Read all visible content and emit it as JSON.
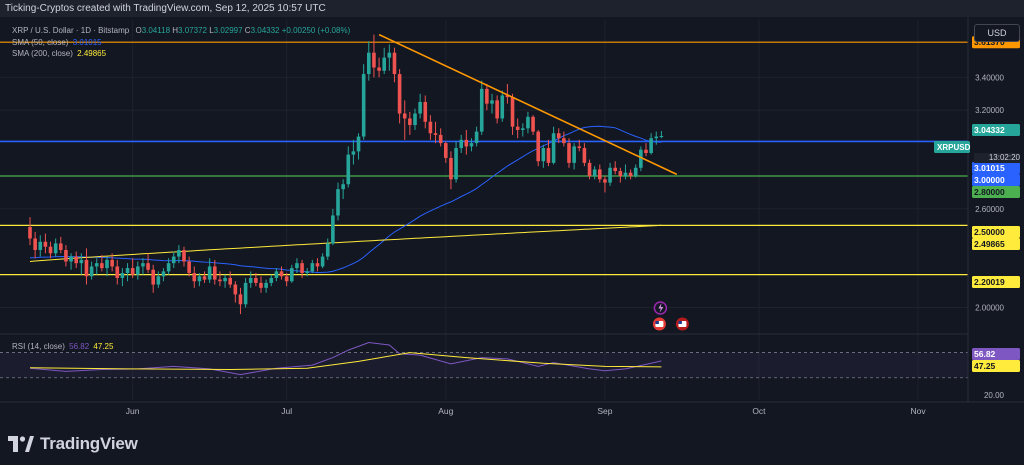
{
  "header": {
    "attribution": "Ticking-Cryptos created with TradingView.com, Sep 12, 2025 10:57 UTC"
  },
  "legend": {
    "symbol_line": "XRP / U.S. Dollar · 1D · Bitstamp",
    "ohlc": {
      "o_label": "O",
      "o": "3.04118",
      "h_label": "H",
      "h": "3.07372",
      "l_label": "L",
      "l": "3.02997",
      "c_label": "C",
      "c": "3.04332",
      "change": "+0.00250 (+0.08%)"
    },
    "sma50": {
      "label": "SMA (50, close)",
      "value": "3.01015",
      "color": "#2962ff"
    },
    "sma200": {
      "label": "SMA (200, close)",
      "value": "2.49865",
      "color": "#ffeb3b"
    }
  },
  "currency_button": "USD",
  "symbol_tag": "XRPUSD",
  "countdown": "13:02:20",
  "rsi": {
    "label": "RSI (14, close)",
    "value": "56.82",
    "ma_value": "47.25",
    "axis_label": "20.00",
    "upper_level": "70.00",
    "lower_level": "30.00",
    "color": "#7e57c2",
    "ma_color": "#ffeb3b"
  },
  "brand": {
    "name": "TradingView"
  },
  "colors": {
    "up": "#26a69a",
    "down": "#ef5350",
    "trendline": "#ff9800",
    "blue_line": "#2962ff",
    "green_line": "#4caf50",
    "yellow_line": "#ffeb3b",
    "sma50": "#2962ff",
    "sma200": "#ffeb3b"
  },
  "chart_data": {
    "type": "candlestick",
    "title": "XRP / U.S. Dollar · 1D · Bitstamp",
    "x_tick_labels": [
      "Jun",
      "Jul",
      "Aug",
      "Sep",
      "Oct",
      "Nov"
    ],
    "y_tick_labels": [
      "3.40000",
      "3.20000",
      "2.60000",
      "2.00000"
    ],
    "ylim": [
      1.9,
      3.75
    ],
    "y_scale": "linear",
    "horizontal_levels": [
      {
        "value": 3.6137,
        "label": "3.61370",
        "color": "#ff9800"
      },
      {
        "value": 3.01015,
        "label": "3.01015",
        "color": "#2962ff"
      },
      {
        "value": 3.0,
        "label": "3.00000",
        "color": "#2962ff"
      },
      {
        "value": 2.8,
        "label": "2.80000",
        "color": "#4caf50"
      },
      {
        "value": 2.5,
        "label": "2.50000",
        "color": "#ffeb3b"
      },
      {
        "value": 2.49865,
        "label": "2.49865",
        "color": "#ffeb3b"
      },
      {
        "value": 2.20019,
        "label": "2.20019",
        "color": "#ffeb3b"
      }
    ],
    "last_price": {
      "value": 3.04332,
      "label": "3.04332"
    },
    "trendline": {
      "from": {
        "date": "2025-07-19",
        "price": 3.66
      },
      "to": {
        "date": "2025-09-15",
        "price": 2.81
      }
    },
    "candles": [
      {
        "date": "2025-05-12",
        "o": 2.49,
        "h": 2.55,
        "l": 2.38,
        "c": 2.42
      },
      {
        "date": "2025-05-13",
        "o": 2.42,
        "h": 2.46,
        "l": 2.3,
        "c": 2.35
      },
      {
        "date": "2025-05-14",
        "o": 2.35,
        "h": 2.44,
        "l": 2.31,
        "c": 2.4
      },
      {
        "date": "2025-05-15",
        "o": 2.4,
        "h": 2.45,
        "l": 2.33,
        "c": 2.37
      },
      {
        "date": "2025-05-16",
        "o": 2.37,
        "h": 2.4,
        "l": 2.3,
        "c": 2.33
      },
      {
        "date": "2025-05-17",
        "o": 2.33,
        "h": 2.42,
        "l": 2.31,
        "c": 2.39
      },
      {
        "date": "2025-05-18",
        "o": 2.39,
        "h": 2.43,
        "l": 2.33,
        "c": 2.35
      },
      {
        "date": "2025-05-19",
        "o": 2.35,
        "h": 2.38,
        "l": 2.25,
        "c": 2.28
      },
      {
        "date": "2025-05-20",
        "o": 2.28,
        "h": 2.33,
        "l": 2.23,
        "c": 2.31
      },
      {
        "date": "2025-05-21",
        "o": 2.31,
        "h": 2.34,
        "l": 2.24,
        "c": 2.27
      },
      {
        "date": "2025-05-22",
        "o": 2.27,
        "h": 2.33,
        "l": 2.2,
        "c": 2.29
      },
      {
        "date": "2025-05-23",
        "o": 2.29,
        "h": 2.36,
        "l": 2.14,
        "c": 2.19
      },
      {
        "date": "2025-05-24",
        "o": 2.19,
        "h": 2.28,
        "l": 2.17,
        "c": 2.25
      },
      {
        "date": "2025-05-25",
        "o": 2.25,
        "h": 2.3,
        "l": 2.2,
        "c": 2.27
      },
      {
        "date": "2025-05-26",
        "o": 2.27,
        "h": 2.32,
        "l": 2.22,
        "c": 2.24
      },
      {
        "date": "2025-05-27",
        "o": 2.24,
        "h": 2.31,
        "l": 2.19,
        "c": 2.29
      },
      {
        "date": "2025-05-28",
        "o": 2.29,
        "h": 2.33,
        "l": 2.22,
        "c": 2.25
      },
      {
        "date": "2025-05-29",
        "o": 2.25,
        "h": 2.29,
        "l": 2.14,
        "c": 2.18
      },
      {
        "date": "2025-05-30",
        "o": 2.18,
        "h": 2.24,
        "l": 2.13,
        "c": 2.21
      },
      {
        "date": "2025-05-31",
        "o": 2.21,
        "h": 2.27,
        "l": 2.16,
        "c": 2.24
      },
      {
        "date": "2025-06-01",
        "o": 2.24,
        "h": 2.3,
        "l": 2.18,
        "c": 2.2
      },
      {
        "date": "2025-06-02",
        "o": 2.2,
        "h": 2.28,
        "l": 2.17,
        "c": 2.25
      },
      {
        "date": "2025-06-03",
        "o": 2.25,
        "h": 2.3,
        "l": 2.2,
        "c": 2.27
      },
      {
        "date": "2025-06-04",
        "o": 2.27,
        "h": 2.33,
        "l": 2.21,
        "c": 2.23
      },
      {
        "date": "2025-06-05",
        "o": 2.23,
        "h": 2.26,
        "l": 2.09,
        "c": 2.14
      },
      {
        "date": "2025-06-06",
        "o": 2.14,
        "h": 2.22,
        "l": 2.12,
        "c": 2.19
      },
      {
        "date": "2025-06-07",
        "o": 2.19,
        "h": 2.24,
        "l": 2.16,
        "c": 2.22
      },
      {
        "date": "2025-06-08",
        "o": 2.22,
        "h": 2.3,
        "l": 2.2,
        "c": 2.27
      },
      {
        "date": "2025-06-09",
        "o": 2.27,
        "h": 2.34,
        "l": 2.24,
        "c": 2.31
      },
      {
        "date": "2025-06-10",
        "o": 2.31,
        "h": 2.38,
        "l": 2.27,
        "c": 2.35
      },
      {
        "date": "2025-06-11",
        "o": 2.35,
        "h": 2.37,
        "l": 2.25,
        "c": 2.28
      },
      {
        "date": "2025-06-12",
        "o": 2.28,
        "h": 2.31,
        "l": 2.19,
        "c": 2.21
      },
      {
        "date": "2025-06-13",
        "o": 2.21,
        "h": 2.25,
        "l": 2.12,
        "c": 2.16
      },
      {
        "date": "2025-06-14",
        "o": 2.16,
        "h": 2.21,
        "l": 2.13,
        "c": 2.19
      },
      {
        "date": "2025-06-15",
        "o": 2.19,
        "h": 2.22,
        "l": 2.15,
        "c": 2.17
      },
      {
        "date": "2025-06-16",
        "o": 2.17,
        "h": 2.3,
        "l": 2.15,
        "c": 2.25
      },
      {
        "date": "2025-06-17",
        "o": 2.25,
        "h": 2.29,
        "l": 2.14,
        "c": 2.17
      },
      {
        "date": "2025-06-18",
        "o": 2.17,
        "h": 2.22,
        "l": 2.13,
        "c": 2.16
      },
      {
        "date": "2025-06-19",
        "o": 2.16,
        "h": 2.2,
        "l": 2.12,
        "c": 2.18
      },
      {
        "date": "2025-06-20",
        "o": 2.18,
        "h": 2.22,
        "l": 2.12,
        "c": 2.14
      },
      {
        "date": "2025-06-21",
        "o": 2.14,
        "h": 2.16,
        "l": 2.03,
        "c": 2.08
      },
      {
        "date": "2025-06-22",
        "o": 2.08,
        "h": 2.12,
        "l": 1.96,
        "c": 2.02
      },
      {
        "date": "2025-06-23",
        "o": 2.02,
        "h": 2.18,
        "l": 2.0,
        "c": 2.15
      },
      {
        "date": "2025-06-24",
        "o": 2.15,
        "h": 2.22,
        "l": 2.12,
        "c": 2.18
      },
      {
        "date": "2025-06-25",
        "o": 2.18,
        "h": 2.21,
        "l": 2.13,
        "c": 2.15
      },
      {
        "date": "2025-06-26",
        "o": 2.15,
        "h": 2.19,
        "l": 2.09,
        "c": 2.12
      },
      {
        "date": "2025-06-27",
        "o": 2.12,
        "h": 2.17,
        "l": 2.09,
        "c": 2.15
      },
      {
        "date": "2025-06-28",
        "o": 2.15,
        "h": 2.2,
        "l": 2.13,
        "c": 2.18
      },
      {
        "date": "2025-06-29",
        "o": 2.18,
        "h": 2.24,
        "l": 2.16,
        "c": 2.22
      },
      {
        "date": "2025-06-30",
        "o": 2.22,
        "h": 2.25,
        "l": 2.17,
        "c": 2.19
      },
      {
        "date": "2025-07-01",
        "o": 2.19,
        "h": 2.21,
        "l": 2.13,
        "c": 2.16
      },
      {
        "date": "2025-07-02",
        "o": 2.16,
        "h": 2.26,
        "l": 2.15,
        "c": 2.24
      },
      {
        "date": "2025-07-03",
        "o": 2.24,
        "h": 2.3,
        "l": 2.21,
        "c": 2.27
      },
      {
        "date": "2025-07-04",
        "o": 2.27,
        "h": 2.29,
        "l": 2.18,
        "c": 2.21
      },
      {
        "date": "2025-07-05",
        "o": 2.21,
        "h": 2.24,
        "l": 2.19,
        "c": 2.22
      },
      {
        "date": "2025-07-06",
        "o": 2.22,
        "h": 2.29,
        "l": 2.21,
        "c": 2.27
      },
      {
        "date": "2025-07-07",
        "o": 2.27,
        "h": 2.3,
        "l": 2.22,
        "c": 2.25
      },
      {
        "date": "2025-07-08",
        "o": 2.25,
        "h": 2.33,
        "l": 2.24,
        "c": 2.31
      },
      {
        "date": "2025-07-09",
        "o": 2.31,
        "h": 2.42,
        "l": 2.29,
        "c": 2.39
      },
      {
        "date": "2025-07-10",
        "o": 2.39,
        "h": 2.6,
        "l": 2.38,
        "c": 2.56
      },
      {
        "date": "2025-07-11",
        "o": 2.56,
        "h": 2.76,
        "l": 2.53,
        "c": 2.72
      },
      {
        "date": "2025-07-12",
        "o": 2.72,
        "h": 2.78,
        "l": 2.66,
        "c": 2.75
      },
      {
        "date": "2025-07-13",
        "o": 2.75,
        "h": 2.98,
        "l": 2.73,
        "c": 2.93
      },
      {
        "date": "2025-07-14",
        "o": 2.93,
        "h": 3.02,
        "l": 2.87,
        "c": 2.95
      },
      {
        "date": "2025-07-15",
        "o": 2.95,
        "h": 3.06,
        "l": 2.9,
        "c": 3.04
      },
      {
        "date": "2025-07-16",
        "o": 3.04,
        "h": 3.48,
        "l": 3.02,
        "c": 3.42
      },
      {
        "date": "2025-07-17",
        "o": 3.42,
        "h": 3.62,
        "l": 3.38,
        "c": 3.55
      },
      {
        "date": "2025-07-18",
        "o": 3.55,
        "h": 3.66,
        "l": 3.4,
        "c": 3.46
      },
      {
        "date": "2025-07-19",
        "o": 3.46,
        "h": 3.52,
        "l": 3.4,
        "c": 3.44
      },
      {
        "date": "2025-07-20",
        "o": 3.44,
        "h": 3.58,
        "l": 3.42,
        "c": 3.52
      },
      {
        "date": "2025-07-21",
        "o": 3.52,
        "h": 3.6,
        "l": 3.44,
        "c": 3.55
      },
      {
        "date": "2025-07-22",
        "o": 3.55,
        "h": 3.58,
        "l": 3.37,
        "c": 3.42
      },
      {
        "date": "2025-07-23",
        "o": 3.42,
        "h": 3.45,
        "l": 3.12,
        "c": 3.18
      },
      {
        "date": "2025-07-24",
        "o": 3.18,
        "h": 3.26,
        "l": 3.02,
        "c": 3.15
      },
      {
        "date": "2025-07-25",
        "o": 3.15,
        "h": 3.19,
        "l": 3.05,
        "c": 3.11
      },
      {
        "date": "2025-07-26",
        "o": 3.11,
        "h": 3.21,
        "l": 3.08,
        "c": 3.18
      },
      {
        "date": "2025-07-27",
        "o": 3.18,
        "h": 3.3,
        "l": 3.15,
        "c": 3.25
      },
      {
        "date": "2025-07-28",
        "o": 3.25,
        "h": 3.29,
        "l": 3.09,
        "c": 3.13
      },
      {
        "date": "2025-07-29",
        "o": 3.13,
        "h": 3.17,
        "l": 3.02,
        "c": 3.06
      },
      {
        "date": "2025-07-30",
        "o": 3.06,
        "h": 3.13,
        "l": 3.0,
        "c": 3.05
      },
      {
        "date": "2025-07-31",
        "o": 3.05,
        "h": 3.09,
        "l": 2.98,
        "c": 3.0
      },
      {
        "date": "2025-08-01",
        "o": 3.0,
        "h": 3.01,
        "l": 2.88,
        "c": 2.91
      },
      {
        "date": "2025-08-02",
        "o": 2.91,
        "h": 2.95,
        "l": 2.72,
        "c": 2.78
      },
      {
        "date": "2025-08-03",
        "o": 2.78,
        "h": 3.01,
        "l": 2.76,
        "c": 2.97
      },
      {
        "date": "2025-08-04",
        "o": 2.97,
        "h": 3.05,
        "l": 2.94,
        "c": 3.02
      },
      {
        "date": "2025-08-05",
        "o": 3.02,
        "h": 3.08,
        "l": 2.93,
        "c": 2.98
      },
      {
        "date": "2025-08-06",
        "o": 2.98,
        "h": 3.03,
        "l": 2.95,
        "c": 3.0
      },
      {
        "date": "2025-08-07",
        "o": 3.0,
        "h": 3.1,
        "l": 2.98,
        "c": 3.07
      },
      {
        "date": "2025-08-08",
        "o": 3.07,
        "h": 3.38,
        "l": 3.05,
        "c": 3.33
      },
      {
        "date": "2025-08-09",
        "o": 3.33,
        "h": 3.36,
        "l": 3.2,
        "c": 3.24
      },
      {
        "date": "2025-08-10",
        "o": 3.24,
        "h": 3.3,
        "l": 3.18,
        "c": 3.26
      },
      {
        "date": "2025-08-11",
        "o": 3.26,
        "h": 3.29,
        "l": 3.12,
        "c": 3.15
      },
      {
        "date": "2025-08-12",
        "o": 3.15,
        "h": 3.32,
        "l": 3.13,
        "c": 3.29
      },
      {
        "date": "2025-08-13",
        "o": 3.29,
        "h": 3.36,
        "l": 3.24,
        "c": 3.28
      },
      {
        "date": "2025-08-14",
        "o": 3.28,
        "h": 3.3,
        "l": 3.05,
        "c": 3.1
      },
      {
        "date": "2025-08-15",
        "o": 3.1,
        "h": 3.15,
        "l": 3.03,
        "c": 3.08
      },
      {
        "date": "2025-08-16",
        "o": 3.08,
        "h": 3.12,
        "l": 3.04,
        "c": 3.09
      },
      {
        "date": "2025-08-17",
        "o": 3.09,
        "h": 3.19,
        "l": 3.06,
        "c": 3.16
      },
      {
        "date": "2025-08-18",
        "o": 3.16,
        "h": 3.17,
        "l": 3.05,
        "c": 3.07
      },
      {
        "date": "2025-08-19",
        "o": 3.07,
        "h": 3.08,
        "l": 2.86,
        "c": 2.89
      },
      {
        "date": "2025-08-20",
        "o": 2.89,
        "h": 2.99,
        "l": 2.85,
        "c": 2.97
      },
      {
        "date": "2025-08-21",
        "o": 2.97,
        "h": 3.02,
        "l": 2.86,
        "c": 2.88
      },
      {
        "date": "2025-08-22",
        "o": 2.88,
        "h": 3.1,
        "l": 2.87,
        "c": 3.06
      },
      {
        "date": "2025-08-23",
        "o": 3.06,
        "h": 3.09,
        "l": 3.0,
        "c": 3.03
      },
      {
        "date": "2025-08-24",
        "o": 3.03,
        "h": 3.07,
        "l": 2.98,
        "c": 3.0
      },
      {
        "date": "2025-08-25",
        "o": 3.0,
        "h": 3.03,
        "l": 2.85,
        "c": 2.88
      },
      {
        "date": "2025-08-26",
        "o": 2.88,
        "h": 3.0,
        "l": 2.84,
        "c": 2.98
      },
      {
        "date": "2025-08-27",
        "o": 2.98,
        "h": 3.02,
        "l": 2.95,
        "c": 2.97
      },
      {
        "date": "2025-08-28",
        "o": 2.97,
        "h": 3.0,
        "l": 2.86,
        "c": 2.88
      },
      {
        "date": "2025-08-29",
        "o": 2.88,
        "h": 2.9,
        "l": 2.78,
        "c": 2.8
      },
      {
        "date": "2025-08-30",
        "o": 2.8,
        "h": 2.86,
        "l": 2.78,
        "c": 2.84
      },
      {
        "date": "2025-08-31",
        "o": 2.84,
        "h": 2.87,
        "l": 2.76,
        "c": 2.78
      },
      {
        "date": "2025-09-01",
        "o": 2.78,
        "h": 2.8,
        "l": 2.7,
        "c": 2.76
      },
      {
        "date": "2025-09-02",
        "o": 2.76,
        "h": 2.88,
        "l": 2.74,
        "c": 2.85
      },
      {
        "date": "2025-09-03",
        "o": 2.85,
        "h": 2.89,
        "l": 2.81,
        "c": 2.83
      },
      {
        "date": "2025-09-04",
        "o": 2.83,
        "h": 2.85,
        "l": 2.76,
        "c": 2.8
      },
      {
        "date": "2025-09-05",
        "o": 2.8,
        "h": 2.87,
        "l": 2.78,
        "c": 2.82
      },
      {
        "date": "2025-09-06",
        "o": 2.82,
        "h": 2.84,
        "l": 2.78,
        "c": 2.8
      },
      {
        "date": "2025-09-07",
        "o": 2.8,
        "h": 2.87,
        "l": 2.79,
        "c": 2.85
      },
      {
        "date": "2025-09-08",
        "o": 2.85,
        "h": 2.98,
        "l": 2.83,
        "c": 2.96
      },
      {
        "date": "2025-09-09",
        "o": 2.96,
        "h": 3.0,
        "l": 2.92,
        "c": 2.94
      },
      {
        "date": "2025-09-10",
        "o": 2.94,
        "h": 3.06,
        "l": 2.93,
        "c": 3.03
      },
      {
        "date": "2025-09-11",
        "o": 3.03,
        "h": 3.07,
        "l": 2.99,
        "c": 3.04
      },
      {
        "date": "2025-09-12",
        "o": 3.04118,
        "h": 3.07372,
        "l": 3.02997,
        "c": 3.04332
      }
    ],
    "rsi_series": [
      {
        "date": "2025-05-12",
        "v": 45
      },
      {
        "date": "2025-05-19",
        "v": 40
      },
      {
        "date": "2025-05-26",
        "v": 43
      },
      {
        "date": "2025-06-02",
        "v": 44
      },
      {
        "date": "2025-06-09",
        "v": 48
      },
      {
        "date": "2025-06-16",
        "v": 44
      },
      {
        "date": "2025-06-22",
        "v": 35
      },
      {
        "date": "2025-06-29",
        "v": 45
      },
      {
        "date": "2025-07-06",
        "v": 50
      },
      {
        "date": "2025-07-10",
        "v": 62
      },
      {
        "date": "2025-07-13",
        "v": 74
      },
      {
        "date": "2025-07-17",
        "v": 86
      },
      {
        "date": "2025-07-21",
        "v": 82
      },
      {
        "date": "2025-07-23",
        "v": 68
      },
      {
        "date": "2025-07-27",
        "v": 66
      },
      {
        "date": "2025-08-02",
        "v": 52
      },
      {
        "date": "2025-08-08",
        "v": 62
      },
      {
        "date": "2025-08-13",
        "v": 60
      },
      {
        "date": "2025-08-19",
        "v": 48
      },
      {
        "date": "2025-08-22",
        "v": 54
      },
      {
        "date": "2025-08-29",
        "v": 44
      },
      {
        "date": "2025-09-01",
        "v": 41
      },
      {
        "date": "2025-09-05",
        "v": 44
      },
      {
        "date": "2025-09-10",
        "v": 53
      },
      {
        "date": "2025-09-12",
        "v": 56.82
      }
    ],
    "rsi_ma_series": [
      {
        "date": "2025-05-12",
        "v": 46
      },
      {
        "date": "2025-06-01",
        "v": 44
      },
      {
        "date": "2025-06-20",
        "v": 43
      },
      {
        "date": "2025-07-05",
        "v": 45
      },
      {
        "date": "2025-07-15",
        "v": 56
      },
      {
        "date": "2025-07-25",
        "v": 70
      },
      {
        "date": "2025-08-05",
        "v": 62
      },
      {
        "date": "2025-08-20",
        "v": 53
      },
      {
        "date": "2025-09-01",
        "v": 48
      },
      {
        "date": "2025-09-12",
        "v": 47.25
      }
    ]
  }
}
